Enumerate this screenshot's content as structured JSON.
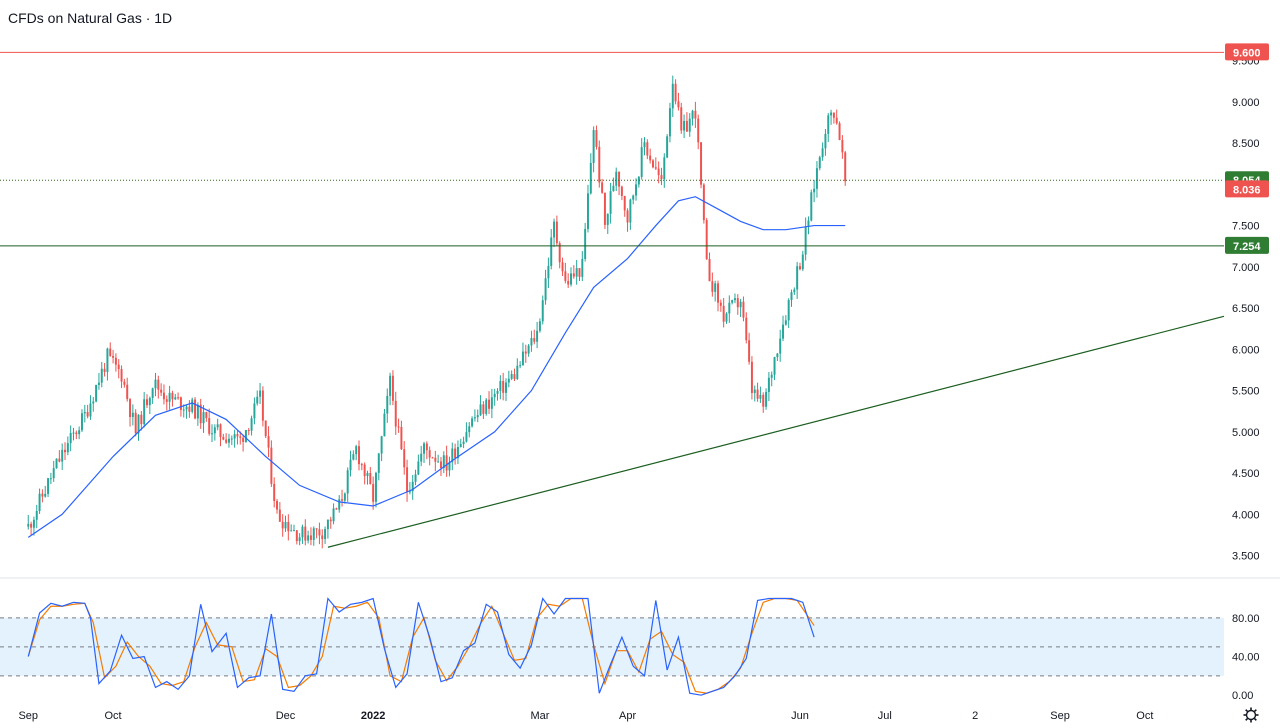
{
  "title": "CFDs on Natural Gas · 1D",
  "colors": {
    "up": "#26a69a",
    "down": "#ef5350",
    "ma": "#2962ff",
    "resistance": "#ef5350",
    "support": "#1b5e20",
    "trend": "#1b5e20",
    "stoch_k": "#2962ff",
    "stoch_d": "#f57c00",
    "stoch_band": "#e3f2fd",
    "badge_last": "#ef5350",
    "badge_green": "#2e7d32"
  },
  "chart_data": [
    {
      "type": "candlestick",
      "title": "CFDs on Natural Gas · 1D",
      "y_ticks": [
        "3.500",
        "4.000",
        "4.500",
        "5.000",
        "5.500",
        "6.000",
        "6.500",
        "7.000",
        "7.500",
        "8.000",
        "8.500",
        "9.000",
        "9.500"
      ],
      "ylim": [
        3.3,
        9.75
      ],
      "x_ticks": [
        {
          "label": "Sep",
          "t": 0
        },
        {
          "label": "Oct",
          "t": 30
        },
        {
          "label": "Dec",
          "t": 91
        },
        {
          "label": "2022",
          "t": 122
        },
        {
          "label": "Mar",
          "t": 181
        },
        {
          "label": "Apr",
          "t": 212
        },
        {
          "label": "Jun",
          "t": 273
        },
        {
          "label": "Jul",
          "t": 303
        },
        {
          "label": "2",
          "t": 335
        },
        {
          "label": "Sep",
          "t": 365
        },
        {
          "label": "Oct",
          "t": 395
        }
      ],
      "xlim": [
        -10,
        423
      ],
      "price_path": [
        [
          0,
          3.85
        ],
        [
          10,
          4.6
        ],
        [
          20,
          5.2
        ],
        [
          28,
          5.9
        ],
        [
          33,
          5.7
        ],
        [
          38,
          5.0
        ],
        [
          44,
          5.6
        ],
        [
          50,
          5.4
        ],
        [
          58,
          5.3
        ],
        [
          66,
          5.0
        ],
        [
          75,
          4.9
        ],
        [
          82,
          5.4
        ],
        [
          88,
          4.0
        ],
        [
          96,
          3.75
        ],
        [
          104,
          3.8
        ],
        [
          110,
          4.1
        ],
        [
          116,
          4.8
        ],
        [
          122,
          4.2
        ],
        [
          128,
          5.6
        ],
        [
          134,
          4.3
        ],
        [
          140,
          4.8
        ],
        [
          148,
          4.6
        ],
        [
          156,
          5.1
        ],
        [
          164,
          5.4
        ],
        [
          172,
          5.7
        ],
        [
          180,
          6.2
        ],
        [
          186,
          7.5
        ],
        [
          190,
          6.8
        ],
        [
          196,
          7.0
        ],
        [
          200,
          8.7
        ],
        [
          204,
          7.5
        ],
        [
          208,
          8.2
        ],
        [
          212,
          7.6
        ],
        [
          218,
          8.5
        ],
        [
          224,
          8.0
        ],
        [
          228,
          9.3
        ],
        [
          231,
          8.6
        ],
        [
          236,
          8.9
        ],
        [
          240,
          7.0
        ],
        [
          246,
          6.4
        ],
        [
          252,
          6.6
        ],
        [
          256,
          5.5
        ],
        [
          260,
          5.3
        ],
        [
          266,
          6.2
        ],
        [
          270,
          6.7
        ],
        [
          274,
          7.2
        ],
        [
          278,
          8.0
        ],
        [
          282,
          8.7
        ],
        [
          285,
          8.9
        ],
        [
          287,
          8.6
        ],
        [
          289,
          8.05
        ]
      ],
      "ma_path": [
        [
          0,
          3.72
        ],
        [
          12,
          4.0
        ],
        [
          30,
          4.7
        ],
        [
          45,
          5.2
        ],
        [
          58,
          5.35
        ],
        [
          70,
          5.15
        ],
        [
          84,
          4.7
        ],
        [
          96,
          4.35
        ],
        [
          110,
          4.15
        ],
        [
          122,
          4.1
        ],
        [
          136,
          4.3
        ],
        [
          150,
          4.65
        ],
        [
          165,
          5.0
        ],
        [
          178,
          5.5
        ],
        [
          190,
          6.2
        ],
        [
          200,
          6.75
        ],
        [
          212,
          7.1
        ],
        [
          222,
          7.5
        ],
        [
          230,
          7.8
        ],
        [
          236,
          7.85
        ],
        [
          244,
          7.7
        ],
        [
          252,
          7.55
        ],
        [
          260,
          7.45
        ],
        [
          268,
          7.45
        ],
        [
          278,
          7.5
        ],
        [
          289,
          7.5
        ]
      ],
      "levels": [
        {
          "value": 9.6,
          "label": "9.600",
          "style": "resistance"
        },
        {
          "value": 8.05,
          "label": "8.054",
          "style": "dotted"
        },
        {
          "value": 7.254,
          "label": "7.254",
          "style": "support"
        }
      ],
      "last_price": {
        "value": 8.036,
        "label": "8.036"
      },
      "trendline": [
        [
          106,
          3.6
        ],
        [
          423,
          6.4
        ]
      ]
    },
    {
      "type": "line",
      "title": "",
      "y_ticks": [
        "0.00",
        "40.00",
        "80.00"
      ],
      "ylim": [
        -5,
        115
      ],
      "band": [
        20,
        80
      ],
      "midline": 50,
      "k_path": [
        [
          0,
          40
        ],
        [
          4,
          85
        ],
        [
          8,
          95
        ],
        [
          12,
          92
        ],
        [
          16,
          96
        ],
        [
          20,
          95
        ],
        [
          22,
          80
        ],
        [
          25,
          12
        ],
        [
          29,
          25
        ],
        [
          33,
          62
        ],
        [
          37,
          38
        ],
        [
          41,
          40
        ],
        [
          45,
          8
        ],
        [
          49,
          14
        ],
        [
          53,
          6
        ],
        [
          57,
          20
        ],
        [
          61,
          94
        ],
        [
          65,
          45
        ],
        [
          70,
          64
        ],
        [
          74,
          8
        ],
        [
          78,
          18
        ],
        [
          82,
          20
        ],
        [
          86,
          84
        ],
        [
          90,
          6
        ],
        [
          94,
          4
        ],
        [
          98,
          20
        ],
        [
          102,
          22
        ],
        [
          106,
          100
        ],
        [
          110,
          86
        ],
        [
          114,
          94
        ],
        [
          118,
          96
        ],
        [
          122,
          100
        ],
        [
          126,
          48
        ],
        [
          130,
          8
        ],
        [
          134,
          22
        ],
        [
          138,
          96
        ],
        [
          142,
          60
        ],
        [
          146,
          14
        ],
        [
          150,
          18
        ],
        [
          154,
          46
        ],
        [
          158,
          54
        ],
        [
          162,
          94
        ],
        [
          166,
          86
        ],
        [
          170,
          42
        ],
        [
          174,
          28
        ],
        [
          178,
          52
        ],
        [
          182,
          100
        ],
        [
          186,
          84
        ],
        [
          190,
          100
        ],
        [
          194,
          100
        ],
        [
          198,
          100
        ],
        [
          202,
          2
        ],
        [
          206,
          32
        ],
        [
          210,
          60
        ],
        [
          214,
          30
        ],
        [
          218,
          20
        ],
        [
          222,
          98
        ],
        [
          226,
          26
        ],
        [
          230,
          60
        ],
        [
          234,
          2
        ],
        [
          238,
          0
        ],
        [
          242,
          4
        ],
        [
          246,
          8
        ],
        [
          250,
          20
        ],
        [
          254,
          38
        ],
        [
          258,
          98
        ],
        [
          262,
          100
        ],
        [
          266,
          100
        ],
        [
          270,
          100
        ],
        [
          274,
          96
        ],
        [
          278,
          60
        ]
      ],
      "d_path": [
        [
          0,
          40
        ],
        [
          4,
          78
        ],
        [
          8,
          92
        ],
        [
          12,
          92
        ],
        [
          16,
          94
        ],
        [
          20,
          95
        ],
        [
          23,
          75
        ],
        [
          27,
          18
        ],
        [
          31,
          30
        ],
        [
          35,
          55
        ],
        [
          39,
          40
        ],
        [
          43,
          30
        ],
        [
          47,
          12
        ],
        [
          51,
          10
        ],
        [
          55,
          14
        ],
        [
          59,
          50
        ],
        [
          63,
          75
        ],
        [
          67,
          52
        ],
        [
          72,
          50
        ],
        [
          76,
          14
        ],
        [
          80,
          16
        ],
        [
          84,
          48
        ],
        [
          88,
          40
        ],
        [
          92,
          8
        ],
        [
          96,
          10
        ],
        [
          100,
          20
        ],
        [
          104,
          40
        ],
        [
          108,
          92
        ],
        [
          112,
          90
        ],
        [
          116,
          92
        ],
        [
          120,
          96
        ],
        [
          124,
          80
        ],
        [
          128,
          20
        ],
        [
          132,
          14
        ],
        [
          136,
          60
        ],
        [
          140,
          80
        ],
        [
          144,
          36
        ],
        [
          148,
          15
        ],
        [
          152,
          30
        ],
        [
          156,
          50
        ],
        [
          160,
          74
        ],
        [
          164,
          92
        ],
        [
          168,
          64
        ],
        [
          172,
          36
        ],
        [
          176,
          38
        ],
        [
          180,
          80
        ],
        [
          184,
          94
        ],
        [
          188,
          92
        ],
        [
          192,
          100
        ],
        [
          196,
          100
        ],
        [
          200,
          52
        ],
        [
          204,
          12
        ],
        [
          208,
          46
        ],
        [
          212,
          46
        ],
        [
          216,
          24
        ],
        [
          220,
          58
        ],
        [
          224,
          66
        ],
        [
          228,
          42
        ],
        [
          232,
          34
        ],
        [
          236,
          4
        ],
        [
          240,
          2
        ],
        [
          244,
          6
        ],
        [
          248,
          14
        ],
        [
          252,
          28
        ],
        [
          256,
          64
        ],
        [
          260,
          96
        ],
        [
          264,
          100
        ],
        [
          268,
          100
        ],
        [
          272,
          98
        ],
        [
          278,
          72
        ]
      ]
    }
  ]
}
